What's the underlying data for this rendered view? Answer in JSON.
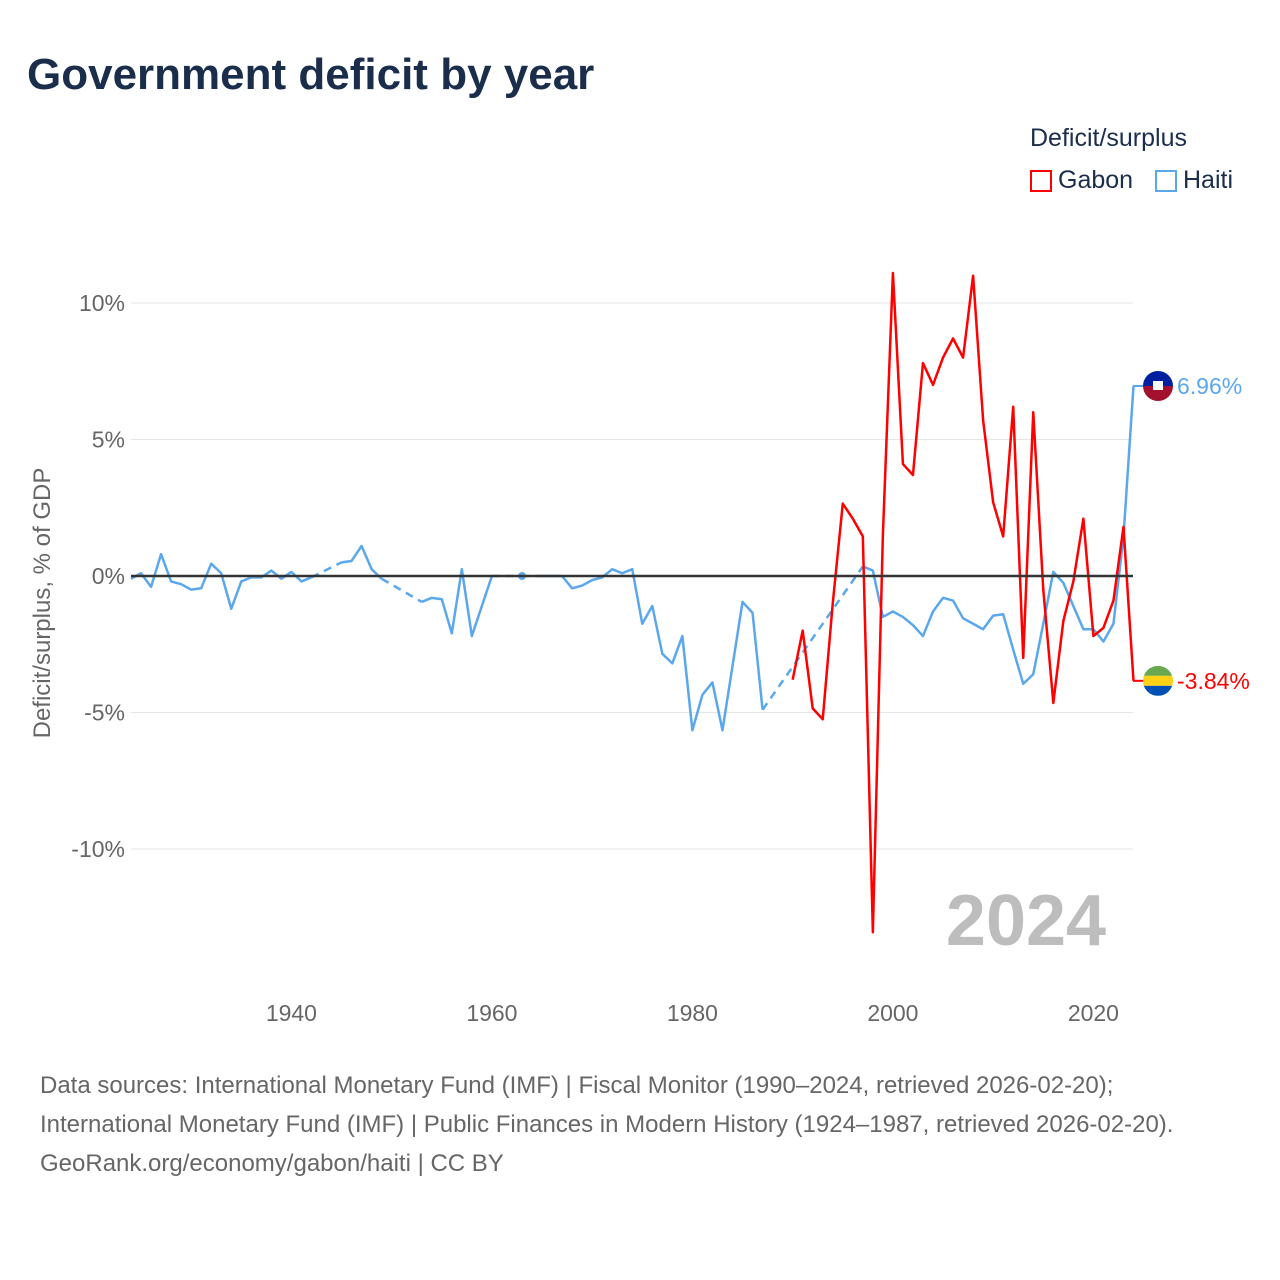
{
  "title": "Government deficit by year",
  "legend": {
    "title": "Deficit/surplus",
    "items": [
      {
        "name": "Gabon",
        "color": "#ff0000"
      },
      {
        "name": "Haiti",
        "color": "#5ba7ec"
      }
    ]
  },
  "year_label": "2024",
  "end_labels": {
    "haiti": "6.96%",
    "gabon": "-3.84%"
  },
  "footer": {
    "sources": "Data sources: International Monetary Fund (IMF) | Fiscal Monitor (1990–2024, retrieved 2026-02-20); International Monetary Fund (IMF) | Public Finances in Modern History (1924–1987, retrieved 2026-02-20).",
    "credit": "GeoRank.org/economy/gabon/haiti | CC BY"
  },
  "chart_data": {
    "type": "line",
    "title": "Government deficit by year",
    "xlabel": "",
    "ylabel": "Deficit/surplus, % of GDP",
    "xlim": [
      1924,
      2024
    ],
    "ylim": [
      -13.5,
      11.5
    ],
    "xticks": [
      1940,
      1960,
      1980,
      2000,
      2020
    ],
    "yticks": [
      {
        "v": 10,
        "label": "10%"
      },
      {
        "v": 5,
        "label": "5%"
      },
      {
        "v": 0,
        "label": "0%"
      },
      {
        "v": -5,
        "label": "-5%"
      },
      {
        "v": -10,
        "label": "-10%"
      }
    ],
    "series": [
      {
        "name": "Haiti",
        "color": "#5ba7ec",
        "start": 1924,
        "values": [
          -0.1,
          0.1,
          -0.4,
          0.8,
          -0.2,
          -0.3,
          -0.5,
          -0.45,
          0.45,
          0.1,
          -1.2,
          -0.2,
          -0.05,
          -0.05,
          0.2,
          -0.1,
          0.15,
          -0.2,
          -0.05,
          null,
          null,
          0.5,
          0.55,
          1.1,
          0.25,
          -0.1,
          null,
          null,
          null,
          -0.95,
          -0.8,
          -0.85,
          -2.1,
          0.25,
          -2.2,
          -1.1,
          0,
          null,
          null,
          0,
          null,
          0,
          0,
          0,
          -0.45,
          -0.35,
          -0.15,
          -0.05,
          0.25,
          0.1,
          0.25,
          -1.75,
          -1.1,
          -2.85,
          -3.2,
          -2.2,
          -5.65,
          -4.35,
          -3.9,
          -5.65,
          -3.3,
          -0.95,
          -1.35,
          -4.9,
          null,
          null,
          null,
          null,
          null,
          null,
          null,
          null,
          null,
          0.35,
          0.2,
          -1.5,
          -1.3,
          -1.5,
          -1.8,
          -2.2,
          -1.3,
          -0.8,
          -0.9,
          -1.55,
          -1.75,
          -1.95,
          -1.45,
          -1.4,
          -2.7,
          -3.95,
          -3.6,
          -1.75,
          0.15,
          -0.25,
          -1.1,
          -1.95,
          -1.95,
          -2.4,
          -1.75,
          1.45,
          6.96
        ]
      },
      {
        "name": "Gabon",
        "color": "#ff0000",
        "start": 1990,
        "values": [
          -3.8,
          -2.0,
          -4.85,
          -5.25,
          -1.0,
          2.65,
          2.1,
          1.45,
          -13.05,
          1.5,
          11.1,
          4.1,
          3.7,
          7.8,
          7.0,
          8.0,
          8.7,
          8.0,
          11.0,
          5.7,
          2.7,
          1.45,
          6.2,
          -3.0,
          6.0,
          -0.5,
          -4.65,
          -1.65,
          -0.2,
          2.1,
          -2.2,
          -1.9,
          -0.9,
          1.8,
          -3.84
        ]
      }
    ]
  }
}
